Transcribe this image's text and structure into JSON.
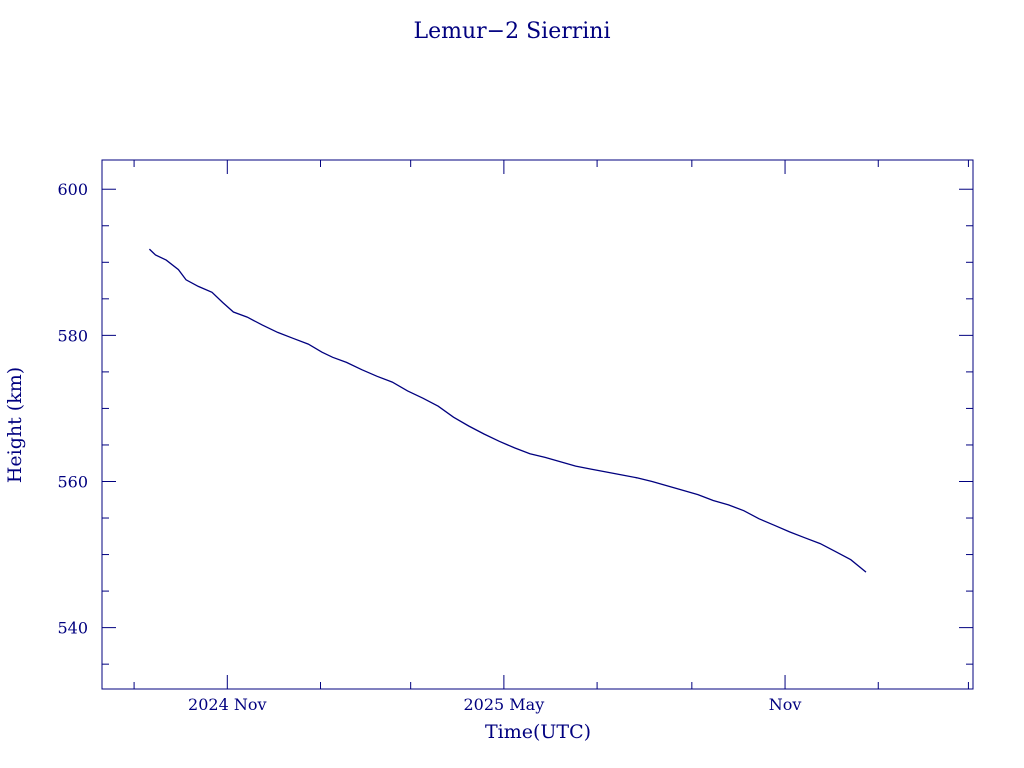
{
  "chart_data": {
    "type": "line",
    "title": "Lemur−2 Sierrini",
    "xlabel": "Time(UTC)",
    "ylabel": "Height (km)",
    "xlim": [
      "2024-08-11",
      "2026-03-04"
    ],
    "ylim": [
      531.6,
      604
    ],
    "x_ticks": [
      {
        "date": "2024-11-01",
        "label": "2024 Nov"
      },
      {
        "date": "2025-05-01",
        "label": "2025 May"
      },
      {
        "date": "2025-11-01",
        "label": "Nov"
      }
    ],
    "y_ticks": [
      540,
      560,
      580,
      600
    ],
    "grid": false,
    "colors": {
      "axes": "#00007f",
      "line": "#00007f",
      "background": "#ffffff"
    },
    "series": [
      {
        "x": [
          "2024-09-11",
          "2024-09-15",
          "2024-09-22",
          "2024-09-30",
          "2024-10-05",
          "2024-10-13",
          "2024-10-22",
          "2024-10-29",
          "2024-11-05",
          "2024-11-14",
          "2024-11-24",
          "2024-12-04",
          "2024-12-14",
          "2024-12-24",
          "2025-01-02",
          "2025-01-09",
          "2025-01-18",
          "2025-01-28",
          "2025-02-07",
          "2025-02-17",
          "2025-02-27",
          "2025-03-09",
          "2025-03-19",
          "2025-03-29",
          "2025-04-08",
          "2025-04-18",
          "2025-04-28",
          "2025-05-08",
          "2025-05-18",
          "2025-05-28",
          "2025-06-07",
          "2025-06-17",
          "2025-06-27",
          "2025-07-07",
          "2025-07-17",
          "2025-07-27",
          "2025-08-06",
          "2025-08-16",
          "2025-08-26",
          "2025-09-05",
          "2025-09-15",
          "2025-09-25",
          "2025-10-05",
          "2025-10-15",
          "2025-10-25",
          "2025-11-04",
          "2025-11-14",
          "2025-11-24",
          "2025-12-04",
          "2025-12-14",
          "2025-12-24"
        ],
        "y": [
          591.8,
          591.0,
          590.3,
          589.0,
          587.6,
          586.7,
          585.9,
          584.5,
          583.2,
          582.5,
          581.4,
          580.4,
          579.6,
          578.8,
          577.7,
          577.0,
          576.3,
          575.3,
          574.4,
          573.6,
          572.4,
          571.4,
          570.3,
          568.8,
          567.6,
          566.5,
          565.5,
          564.6,
          563.8,
          563.3,
          562.7,
          562.1,
          561.7,
          561.3,
          560.9,
          560.5,
          560.0,
          559.4,
          558.8,
          558.2,
          557.4,
          556.8,
          556.0,
          554.9,
          554.0,
          553.1,
          552.3,
          551.5,
          550.4,
          549.3,
          547.6
        ]
      }
    ]
  }
}
